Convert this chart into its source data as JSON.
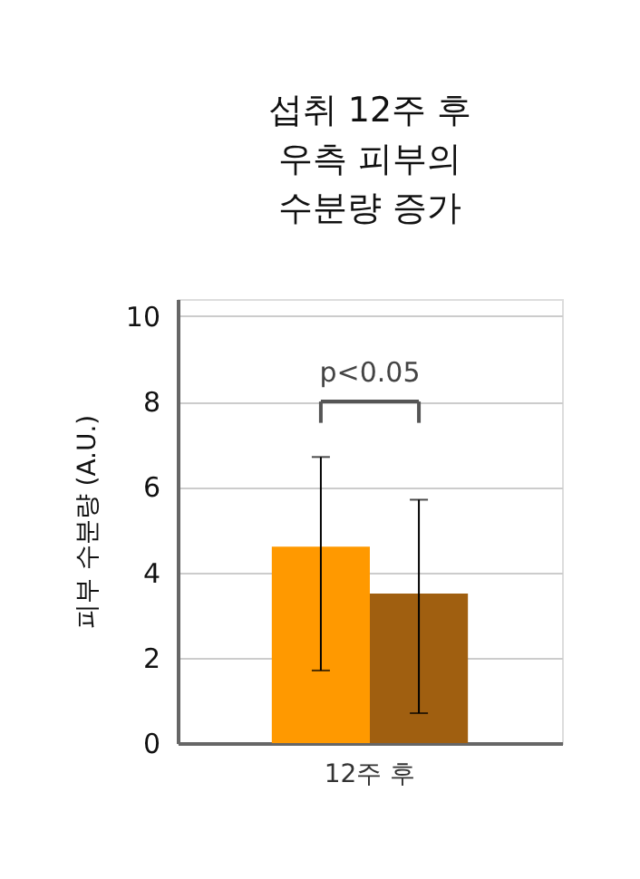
{
  "chart_data": {
    "type": "bar",
    "title": [
      "섭취 12주 후",
      "우측 피부의",
      "수분량 증가"
    ],
    "ylabel": "피부 수분량 (A.U.)",
    "categories": [
      "12주 후"
    ],
    "series": [
      {
        "color": "#ff9900",
        "values": [
          4.6
        ],
        "errors": [
          [
            1.7,
            6.7
          ]
        ]
      },
      {
        "color": "#a05f10",
        "values": [
          3.5
        ],
        "errors": [
          [
            0.7,
            5.7
          ]
        ]
      }
    ],
    "ylim": [
      0,
      10.4
    ],
    "yticks": [
      0,
      2,
      4,
      6,
      8,
      10
    ],
    "grid": "y",
    "annotations": [
      "p<0.05"
    ]
  }
}
